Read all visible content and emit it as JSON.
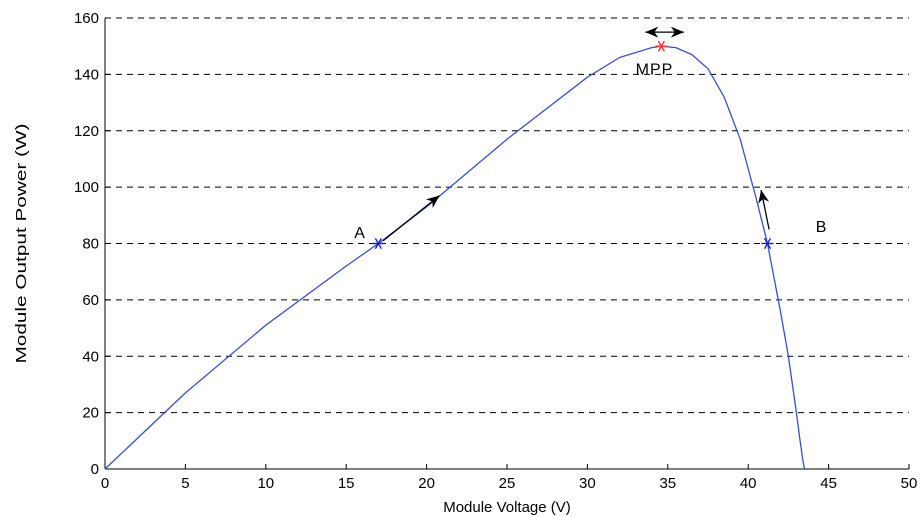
{
  "chart_data": {
    "type": "line",
    "title": "",
    "xlabel": "Module Voltage (V)",
    "ylabel": "Module Output Power (W)",
    "xlim": [
      0,
      50
    ],
    "ylim": [
      0,
      160
    ],
    "xticks": [
      0,
      5,
      10,
      15,
      20,
      25,
      30,
      35,
      40,
      45,
      50
    ],
    "yticks": [
      0,
      20,
      40,
      60,
      80,
      100,
      120,
      140,
      160
    ],
    "grid": "horizontal dashed",
    "series": [
      {
        "color": "#3a4fd0",
        "x": [
          0,
          5,
          10,
          15,
          17,
          20,
          25,
          30,
          32,
          34,
          34.6,
          35.5,
          36.5,
          37.5,
          38.5,
          39.5,
          40.5,
          41.2,
          42,
          42.5,
          43,
          43.2,
          43.4,
          43.5
        ],
        "y": [
          0,
          27,
          51,
          72,
          80,
          93,
          117,
          139,
          146,
          149.5,
          150,
          149.5,
          147,
          142,
          132,
          117,
          96,
          80,
          56,
          40,
          20,
          11,
          3,
          0
        ]
      }
    ],
    "points": [
      {
        "label": "A",
        "x": 17,
        "y": 80,
        "color": "#1a1adc",
        "marker": "star"
      },
      {
        "label": "B",
        "x": 41.2,
        "y": 80,
        "color": "#1a1adc",
        "marker": "star"
      },
      {
        "label": "MPP",
        "x": 34.6,
        "y": 150,
        "color": "#ff3030",
        "marker": "star"
      }
    ],
    "annotations": [
      {
        "text": "A",
        "x": 15.5,
        "y": 82
      },
      {
        "text": "B",
        "x": 44.2,
        "y": 84
      },
      {
        "text": "MPP",
        "x": 33,
        "y": 140
      }
    ],
    "arrows": [
      {
        "from": [
          17.3,
          81
        ],
        "to": [
          20.8,
          97
        ]
      },
      {
        "from": [
          41.3,
          85
        ],
        "to": [
          40.8,
          99
        ]
      },
      {
        "from": [
          33.6,
          155
        ],
        "to": [
          36.0,
          155
        ],
        "double": true
      }
    ]
  }
}
